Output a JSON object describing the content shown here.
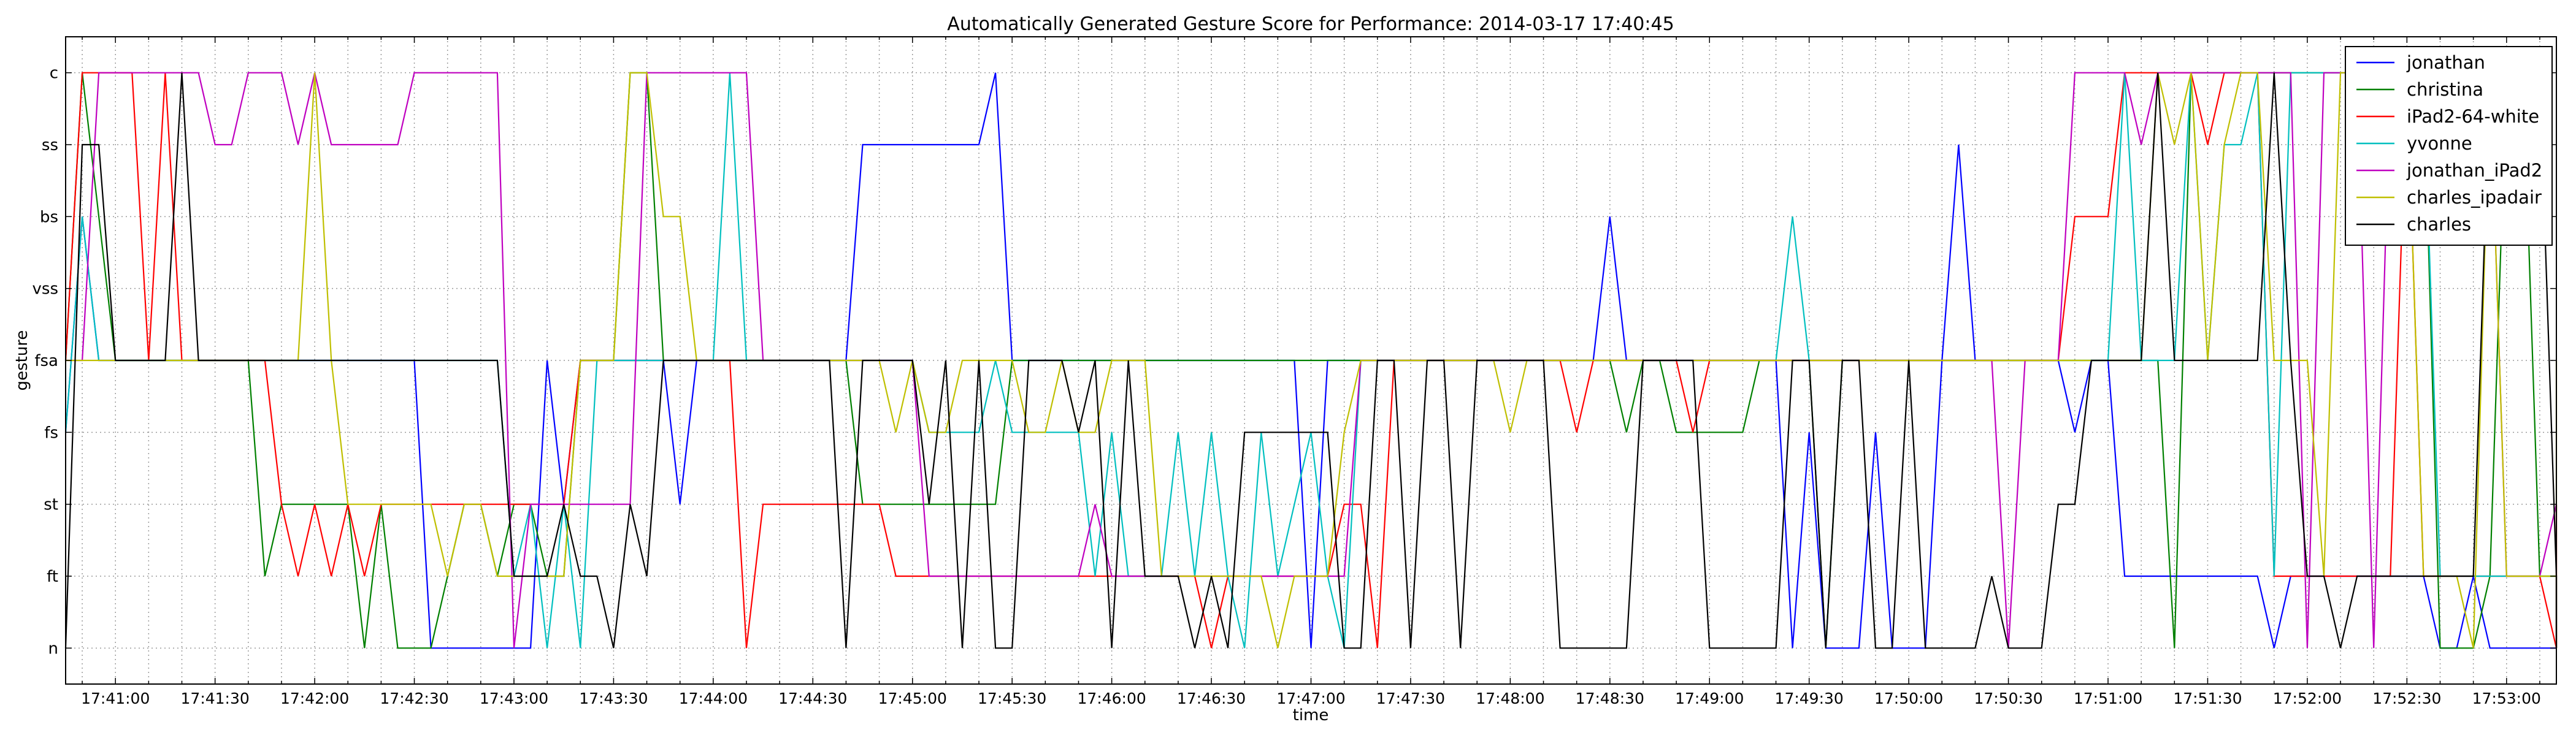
{
  "chart_data": {
    "type": "line",
    "title": "Automatically Generated Gesture Score for Performance: 2014-03-17 17:40:45",
    "xlabel": "time",
    "ylabel": "gesture",
    "y_categories": [
      "n",
      "ft",
      "st",
      "fs",
      "fsa",
      "vss",
      "bs",
      "ss",
      "c"
    ],
    "x_ticks": [
      "17:41:00",
      "17:41:30",
      "17:42:00",
      "17:42:30",
      "17:43:00",
      "17:43:30",
      "17:44:00",
      "17:44:30",
      "17:45:00",
      "17:45:30",
      "17:46:00",
      "17:46:30",
      "17:47:00",
      "17:47:30",
      "17:48:00",
      "17:48:30",
      "17:49:00",
      "17:49:30",
      "17:50:00",
      "17:50:30",
      "17:51:00",
      "17:51:30",
      "17:52:00",
      "17:52:30",
      "17:53:00"
    ],
    "x_range": [
      "17:40:45",
      "17:53:15"
    ],
    "grid": true,
    "legend_position": "top-right",
    "sample_interval_seconds": 5,
    "series": [
      {
        "name": "jonathan",
        "color": "#0000ff",
        "values": [
          "fs",
          "bs",
          "fsa",
          "fsa",
          "fsa",
          "fsa",
          "fsa",
          "fsa",
          "fsa",
          "fsa",
          "fsa",
          "fsa",
          "fsa",
          "fsa",
          "fsa",
          "fsa",
          "fsa",
          "fsa",
          "fsa",
          "fsa",
          "fsa",
          "fsa",
          "n",
          "n",
          "n",
          "n",
          "n",
          "n",
          "n",
          "fsa",
          "st",
          "fsa",
          "fsa",
          "fsa",
          "fsa",
          "fsa",
          "fsa",
          "st",
          "fsa",
          "fsa",
          "fsa",
          "fsa",
          "fsa",
          "fsa",
          "fsa",
          "fsa",
          "fsa",
          "fsa",
          "ss",
          "ss",
          "ss",
          "ss",
          "ss",
          "ss",
          "ss",
          "ss",
          "c",
          "fsa",
          "fsa",
          "fsa",
          "fsa",
          "fsa",
          "fsa",
          "fsa",
          "fsa",
          "fsa",
          "fsa",
          "fsa",
          "fsa",
          "fsa",
          "fsa",
          "fsa",
          "fsa",
          "fsa",
          "fsa",
          "n",
          "fsa",
          "fsa",
          "fsa",
          "fsa",
          "fsa",
          "fsa",
          "fsa",
          "fsa",
          "fsa",
          "fsa",
          "fsa",
          "fsa",
          "fsa",
          "fsa",
          "fsa",
          "fsa",
          "fsa",
          "bs",
          "fsa",
          "fsa",
          "fsa",
          "fsa",
          "fsa",
          "fsa",
          "fsa",
          "fsa",
          "fsa",
          "fsa",
          "n",
          "fs",
          "n",
          "n",
          "n",
          "fs",
          "n",
          "n",
          "n",
          "fsa",
          "ss",
          "fsa",
          "fsa",
          "fsa",
          "fsa",
          "fsa",
          "fsa",
          "fs",
          "fsa",
          "fsa",
          "ft",
          "ft",
          "ft",
          "ft",
          "ft",
          "ft",
          "ft",
          "ft",
          "ft",
          "n",
          "ft",
          "ft",
          "ft",
          "ft",
          "ft",
          "ft",
          "ft",
          "ft",
          "ft",
          "n",
          "n",
          "ft",
          "n",
          "n",
          "n",
          "n",
          "n",
          "n",
          "n"
        ]
      },
      {
        "name": "christina",
        "color": "#008000",
        "values": [
          "fsa",
          "c",
          "bs",
          "fsa",
          "fsa",
          "fsa",
          "fsa",
          "fsa",
          "fsa",
          "fsa",
          "fsa",
          "fsa",
          "ft",
          "st",
          "st",
          "st",
          "st",
          "st",
          "n",
          "st",
          "n",
          "n",
          "n",
          "ft",
          "st",
          "st",
          "ft",
          "st",
          "st",
          "ft",
          "ft",
          "fsa",
          "fsa",
          "fsa",
          "c",
          "c",
          "fsa",
          "fsa",
          "fsa",
          "fsa",
          "fsa",
          "fsa",
          "fsa",
          "fsa",
          "fsa",
          "fsa",
          "fsa",
          "fsa",
          "st",
          "st",
          "st",
          "st",
          "st",
          "st",
          "st",
          "st",
          "st",
          "fsa",
          "fsa",
          "fsa",
          "fsa",
          "fsa",
          "fsa",
          "fsa",
          "fsa",
          "fsa",
          "fsa",
          "fsa",
          "fsa",
          "fsa",
          "fsa",
          "fsa",
          "fsa",
          "fsa",
          "fsa",
          "fsa",
          "fsa",
          "fsa",
          "fsa",
          "fsa",
          "fsa",
          "fsa",
          "fsa",
          "fsa",
          "fsa",
          "fsa",
          "fsa",
          "fsa",
          "fsa",
          "fsa",
          "fsa",
          "fsa",
          "fsa",
          "fsa",
          "fs",
          "fsa",
          "fsa",
          "fs",
          "fs",
          "fs",
          "fs",
          "fs",
          "fsa",
          "fsa",
          "fsa",
          "fsa",
          "n",
          "fsa",
          "fsa",
          "fsa",
          "fsa",
          "fsa",
          "fsa",
          "fsa",
          "fsa",
          "fsa",
          "fsa",
          "fsa",
          "fsa",
          "fsa",
          "fsa",
          "fsa",
          "fsa",
          "fsa",
          "fsa",
          "fsa",
          "fsa",
          "n",
          "c",
          "c",
          "c",
          "c",
          "c",
          "c",
          "c",
          "c",
          "c",
          "c",
          "c",
          "c",
          "c",
          "c",
          "c",
          "n",
          "n",
          "n",
          "ft",
          "c",
          "c",
          "ft",
          "ft",
          "ft",
          "ft",
          "ft",
          "ft",
          "ft",
          "ft",
          "ft",
          "n",
          "n",
          "n"
        ]
      },
      {
        "name": "iPad2-64-white",
        "color": "#ff0000",
        "values": [
          "fsa",
          "c",
          "c",
          "c",
          "c",
          "fsa",
          "c",
          "fsa",
          "fsa",
          "fsa",
          "fsa",
          "fsa",
          "fsa",
          "st",
          "ft",
          "st",
          "ft",
          "st",
          "ft",
          "st",
          "st",
          "st",
          "st",
          "st",
          "st",
          "st",
          "st",
          "st",
          "st",
          "st",
          "st",
          "fsa",
          "fsa",
          "fsa",
          "fsa",
          "fsa",
          "fsa",
          "fsa",
          "fsa",
          "fsa",
          "fsa",
          "n",
          "st",
          "st",
          "st",
          "st",
          "st",
          "st",
          "st",
          "st",
          "ft",
          "ft",
          "ft",
          "ft",
          "ft",
          "ft",
          "ft",
          "ft",
          "ft",
          "ft",
          "ft",
          "ft",
          "ft",
          "ft",
          "ft",
          "ft",
          "ft",
          "ft",
          "ft",
          "n",
          "ft",
          "ft",
          "ft",
          "ft",
          "ft",
          "ft",
          "ft",
          "st",
          "st",
          "n",
          "fsa",
          "fsa",
          "fsa",
          "fsa",
          "fsa",
          "fsa",
          "fsa",
          "fsa",
          "fsa",
          "fsa",
          "fsa",
          "fs",
          "fsa",
          "fsa",
          "fsa",
          "fsa",
          "fsa",
          "fsa",
          "fs",
          "fsa",
          "fsa",
          "fsa",
          "fsa",
          "fsa",
          "fsa",
          "fsa",
          "fsa",
          "fsa",
          "fsa",
          "fsa",
          "fsa",
          "fsa",
          "fsa",
          "fsa",
          "fsa",
          "fsa",
          "fsa",
          "fsa",
          "fsa",
          "fsa",
          "fsa",
          "bs",
          "bs",
          "bs",
          "c",
          "c",
          "c",
          "c",
          "c",
          "ss",
          "c",
          "c",
          "c",
          "ft",
          "ft",
          "ft",
          "ft",
          "ft",
          "ft",
          "ft",
          "ft",
          "c",
          "ft",
          "ft",
          "ft",
          "ft",
          "ft",
          "ft",
          "ft",
          "ft",
          "n",
          "n",
          "n",
          "n",
          "n",
          "n",
          "n",
          "st",
          "n"
        ]
      },
      {
        "name": "yvonne",
        "color": "#00bfbf",
        "values": [
          "fs",
          "bs",
          "fsa",
          "fsa",
          "fsa",
          "fsa",
          "fsa",
          "fsa",
          "fsa",
          "fsa",
          "fsa",
          "fsa",
          "fsa",
          "fsa",
          "fsa",
          "fsa",
          "fsa",
          "fsa",
          "fsa",
          "fsa",
          "fsa",
          "fsa",
          "fsa",
          "fsa",
          "fsa",
          "fsa",
          "fsa",
          "ft",
          "st",
          "n",
          "st",
          "n",
          "fsa",
          "fsa",
          "fsa",
          "fsa",
          "fsa",
          "fsa",
          "fsa",
          "fsa",
          "c",
          "fsa",
          "fsa",
          "fsa",
          "fsa",
          "fsa",
          "fsa",
          "fsa",
          "fsa",
          "fsa",
          "fsa",
          "fsa",
          "fs",
          "fs",
          "fs",
          "fs",
          "fsa",
          "fs",
          "fs",
          "fs",
          "fs",
          "fs",
          "ft",
          "fs",
          "ft",
          "ft",
          "ft",
          "fs",
          "ft",
          "fs",
          "ft",
          "n",
          "fs",
          "ft",
          "st",
          "fs",
          "ft",
          "n",
          "fsa",
          "fsa",
          "fsa",
          "fsa",
          "fsa",
          "fsa",
          "fsa",
          "fsa",
          "fsa",
          "fsa",
          "fsa",
          "fsa",
          "fsa",
          "fsa",
          "fsa",
          "fsa",
          "fsa",
          "fsa",
          "fsa",
          "fsa",
          "fsa",
          "fsa",
          "fsa",
          "fsa",
          "fsa",
          "fsa",
          "bs",
          "fsa",
          "fsa",
          "fsa",
          "fsa",
          "fsa",
          "fsa",
          "fsa",
          "fsa",
          "fsa",
          "fsa",
          "fsa",
          "fsa",
          "fsa",
          "fsa",
          "fsa",
          "fsa",
          "fsa",
          "fsa",
          "fsa",
          "c",
          "fsa",
          "fsa",
          "fsa",
          "c",
          "fsa",
          "ss",
          "ss",
          "c",
          "ft",
          "c",
          "c",
          "c",
          "c",
          "c",
          "c",
          "c",
          "c",
          "c",
          "ft",
          "ft",
          "ft",
          "ft",
          "ft",
          "ft",
          "ft",
          "ft",
          "ft",
          "ft",
          "n",
          "n",
          "n",
          "n",
          "n",
          "n",
          "n",
          "n",
          "n"
        ]
      },
      {
        "name": "jonathan_iPad2",
        "color": "#bf00bf",
        "values": [
          "fsa",
          "fsa",
          "c",
          "c",
          "c",
          "c",
          "c",
          "c",
          "c",
          "ss",
          "ss",
          "c",
          "c",
          "c",
          "ss",
          "c",
          "ss",
          "ss",
          "ss",
          "ss",
          "ss",
          "c",
          "c",
          "c",
          "c",
          "c",
          "c",
          "n",
          "st",
          "st",
          "st",
          "st",
          "st",
          "st",
          "st",
          "c",
          "c",
          "c",
          "c",
          "c",
          "c",
          "c",
          "fsa",
          "fsa",
          "fsa",
          "fsa",
          "fsa",
          "fsa",
          "fsa",
          "fsa",
          "fsa",
          "fsa",
          "ft",
          "ft",
          "ft",
          "ft",
          "ft",
          "ft",
          "ft",
          "ft",
          "ft",
          "ft",
          "st",
          "ft",
          "ft",
          "ft",
          "ft",
          "ft",
          "ft",
          "ft",
          "ft",
          "ft",
          "ft",
          "ft",
          "ft",
          "ft",
          "ft",
          "ft",
          "fsa",
          "fsa",
          "fsa",
          "fsa",
          "fsa",
          "fsa",
          "fsa",
          "fsa",
          "fsa",
          "fsa",
          "fsa",
          "fsa",
          "fsa",
          "fsa",
          "fsa",
          "fsa",
          "fsa",
          "fsa",
          "fsa",
          "fsa",
          "fsa",
          "fsa",
          "fsa",
          "fsa",
          "fsa",
          "fsa",
          "fsa",
          "fsa",
          "fsa",
          "fsa",
          "fsa",
          "fsa",
          "fsa",
          "fsa",
          "fsa",
          "fsa",
          "fsa",
          "fsa",
          "fsa",
          "n",
          "fsa",
          "fsa",
          "fsa",
          "c",
          "c",
          "c",
          "c",
          "ss",
          "c",
          "c",
          "c",
          "c",
          "c",
          "c",
          "c",
          "c",
          "c",
          "n",
          "c",
          "c",
          "c",
          "n",
          "c",
          "c",
          "c",
          "c",
          "c",
          "c",
          "c",
          "ft",
          "ft",
          "ft",
          "st",
          "n",
          "n",
          "n",
          "n",
          "n",
          "n",
          "n"
        ]
      },
      {
        "name": "charles_ipadair",
        "color": "#bfbf00",
        "values": [
          "fsa",
          "fsa",
          "fsa",
          "fsa",
          "fsa",
          "fsa",
          "fsa",
          "fsa",
          "fsa",
          "fsa",
          "fsa",
          "fsa",
          "fsa",
          "fsa",
          "fsa",
          "c",
          "fsa",
          "st",
          "st",
          "st",
          "st",
          "st",
          "st",
          "ft",
          "st",
          "st",
          "ft",
          "ft",
          "ft",
          "ft",
          "ft",
          "fsa",
          "fsa",
          "fsa",
          "c",
          "c",
          "bs",
          "bs",
          "fsa",
          "fsa",
          "fsa",
          "fsa",
          "fsa",
          "fsa",
          "fsa",
          "fsa",
          "fsa",
          "fsa",
          "fsa",
          "fsa",
          "fs",
          "fsa",
          "fs",
          "fs",
          "fsa",
          "fsa",
          "fsa",
          "fsa",
          "fs",
          "fs",
          "fsa",
          "fs",
          "fs",
          "fsa",
          "fsa",
          "fsa",
          "ft",
          "ft",
          "ft",
          "ft",
          "ft",
          "ft",
          "ft",
          "n",
          "ft",
          "ft",
          "ft",
          "fs",
          "fsa",
          "fsa",
          "fsa",
          "fsa",
          "fsa",
          "fsa",
          "fsa",
          "fsa",
          "fsa",
          "fs",
          "fsa",
          "fsa",
          "fsa",
          "fsa",
          "fsa",
          "fsa",
          "fsa",
          "fsa",
          "fsa",
          "fsa",
          "fsa",
          "fsa",
          "fsa",
          "fsa",
          "fsa",
          "fsa",
          "fsa",
          "fsa",
          "fsa",
          "fsa",
          "fsa",
          "fsa",
          "fsa",
          "fsa",
          "fsa",
          "fsa",
          "fsa",
          "fsa",
          "fsa",
          "fsa",
          "fsa",
          "fsa",
          "fsa",
          "fsa",
          "fsa",
          "fsa",
          "fsa",
          "fsa",
          "c",
          "ss",
          "c",
          "fsa",
          "ss",
          "c",
          "c",
          "fsa",
          "fsa",
          "fsa",
          "ft",
          "c",
          "c",
          "c",
          "c",
          "c",
          "ft",
          "ft",
          "ft",
          "n",
          "c",
          "ft",
          "ft",
          "ft",
          "ft",
          "ft",
          "ft",
          "ft",
          "n",
          "n",
          "n",
          "n",
          "n",
          "n",
          "fsa",
          "n"
        ]
      },
      {
        "name": "charles",
        "color": "#000000",
        "values": [
          "n",
          "ss",
          "ss",
          "fsa",
          "fsa",
          "fsa",
          "fsa",
          "c",
          "fsa",
          "fsa",
          "fsa",
          "fsa",
          "fsa",
          "fsa",
          "fsa",
          "fsa",
          "fsa",
          "fsa",
          "fsa",
          "fsa",
          "fsa",
          "fsa",
          "fsa",
          "fsa",
          "fsa",
          "fsa",
          "fsa",
          "ft",
          "ft",
          "ft",
          "st",
          "ft",
          "ft",
          "n",
          "st",
          "ft",
          "fsa",
          "fsa",
          "fsa",
          "fsa",
          "fsa",
          "fsa",
          "fsa",
          "fsa",
          "fsa",
          "fsa",
          "fsa",
          "n",
          "fsa",
          "fsa",
          "fsa",
          "fsa",
          "st",
          "fsa",
          "n",
          "fsa",
          "n",
          "n",
          "fsa",
          "fsa",
          "fsa",
          "fs",
          "fsa",
          "n",
          "fsa",
          "ft",
          "ft",
          "ft",
          "n",
          "ft",
          "n",
          "fs",
          "fs",
          "fs",
          "fs",
          "fs",
          "fs",
          "n",
          "n",
          "fsa",
          "fsa",
          "n",
          "fsa",
          "fsa",
          "n",
          "fsa",
          "fsa",
          "fsa",
          "fsa",
          "fsa",
          "n",
          "n",
          "n",
          "n",
          "n",
          "fsa",
          "fsa",
          "fsa",
          "fsa",
          "n",
          "n",
          "n",
          "n",
          "n",
          "fsa",
          "fsa",
          "n",
          "fsa",
          "fsa",
          "n",
          "n",
          "fsa",
          "n",
          "n",
          "n",
          "n",
          "ft",
          "n",
          "n",
          "n",
          "st",
          "st",
          "fsa",
          "fsa",
          "fsa",
          "fsa",
          "c",
          "fsa",
          "fsa",
          "fsa",
          "fsa",
          "fsa",
          "fsa",
          "c",
          "fsa",
          "ft",
          "ft",
          "n",
          "ft",
          "ft",
          "ft",
          "ft",
          "ft",
          "ft",
          "ft",
          "ft",
          "c",
          "c",
          "c",
          "c",
          "ft",
          "ft",
          "ft",
          "ft",
          "ft",
          "ft",
          "ft",
          "ft",
          "ft",
          "n",
          "n",
          "n",
          "n",
          "n",
          "n",
          "n",
          "n"
        ]
      }
    ]
  }
}
